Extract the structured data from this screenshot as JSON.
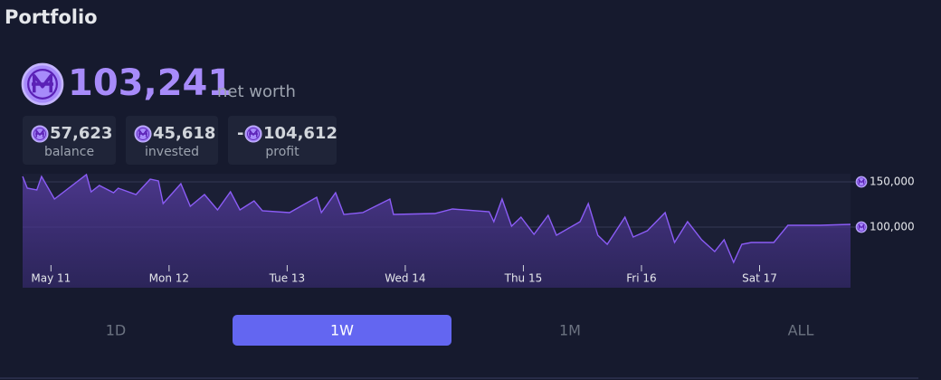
{
  "header": {
    "title": "Portfolio"
  },
  "net_worth": {
    "value": "103,241",
    "label": "net worth"
  },
  "stats": [
    {
      "value": "57,623",
      "label": "balance"
    },
    {
      "value": "45,618",
      "label": "invested"
    },
    {
      "sign": "-",
      "value": "104,612",
      "label": "profit"
    }
  ],
  "chart_data": {
    "type": "line",
    "x": [
      -0.24,
      -0.2,
      -0.12,
      -0.08,
      0.03,
      0.3,
      0.34,
      0.41,
      0.53,
      0.57,
      0.72,
      0.84,
      0.91,
      0.95,
      1.1,
      1.18,
      1.3,
      1.41,
      1.52,
      1.6,
      1.72,
      1.79,
      2.02,
      2.25,
      2.29,
      2.41,
      2.48,
      2.64,
      2.87,
      2.9,
      3.25,
      3.4,
      3.71,
      3.75,
      3.82,
      3.9,
      3.98,
      4.09,
      4.21,
      4.28,
      4.48,
      4.55,
      4.63,
      4.71,
      4.86,
      4.93,
      5.05,
      5.2,
      5.28,
      5.39,
      5.51,
      5.62,
      5.7,
      5.78,
      5.85,
      5.93,
      6.12,
      6.24,
      6.51,
      6.77
    ],
    "series": [
      {
        "color": "#8b5cf6",
        "values": [
          156000,
          143000,
          141000,
          156000,
          131000,
          158000,
          139000,
          146000,
          138000,
          143000,
          136000,
          153000,
          151000,
          126000,
          148000,
          123000,
          136000,
          119000,
          139000,
          119000,
          129000,
          118000,
          116000,
          133000,
          116000,
          138000,
          114000,
          116000,
          131000,
          114000,
          115000,
          120000,
          117000,
          106000,
          131000,
          101000,
          111000,
          92000,
          113000,
          91000,
          106000,
          126000,
          91000,
          81000,
          111000,
          89000,
          96000,
          116000,
          83000,
          106000,
          86000,
          73000,
          86000,
          61000,
          81000,
          83000,
          83000,
          102000,
          102000,
          103000
        ]
      }
    ],
    "xlim": [
      -0.24,
      6.77
    ],
    "xticks": [
      {
        "value": 0,
        "label": "May 11"
      },
      {
        "value": 1,
        "label": "Mon 12"
      },
      {
        "value": 2,
        "label": "Tue 13"
      },
      {
        "value": 3,
        "label": "Wed 14"
      },
      {
        "value": 4,
        "label": "Thu 15"
      },
      {
        "value": 5,
        "label": "Fri 16"
      },
      {
        "value": 6,
        "label": "Sat 17"
      }
    ],
    "ylim": [
      33000,
      159000
    ],
    "yticks": [
      {
        "value": 100000,
        "label": "100,000"
      },
      {
        "value": 150000,
        "label": "150,000"
      }
    ],
    "grid": true
  },
  "tabs": {
    "items": [
      "1D",
      "1W",
      "1M",
      "ALL"
    ],
    "selected": 1
  }
}
